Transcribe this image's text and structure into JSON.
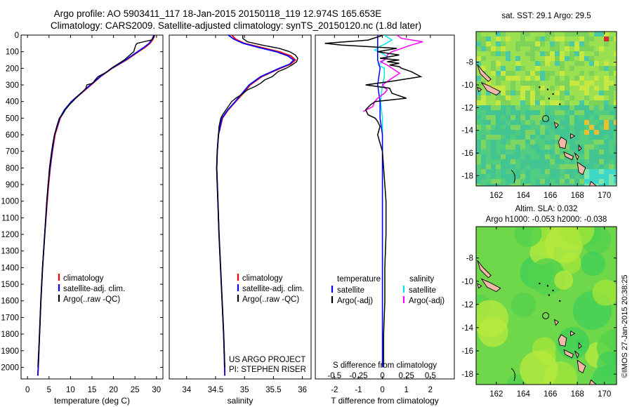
{
  "figure": {
    "title_line1": "Argo profile: AO 5903411_117 18-Jan-2015 20150118_119 12.974S 165.653E",
    "title_line2": "Climatology: CARS2009. Satellite-adjusted climatology: synTS_20150120.nc (1.8d later)",
    "credit": "US ARGO PROJECT",
    "pi": "PI: STEPHEN RISER",
    "watermark": "©IMOS 27-Jan-2015 20:38:25"
  },
  "chart_data": [
    {
      "id": "temperature",
      "type": "line",
      "xlabel": "temperature (deg C)",
      "xlim": [
        -1.5,
        31.5
      ],
      "xticks": [
        0,
        5,
        10,
        15,
        20,
        25,
        30
      ],
      "ylim": [
        2070,
        0
      ],
      "yticks": [
        0,
        100,
        200,
        300,
        400,
        500,
        600,
        700,
        800,
        900,
        1000,
        1100,
        1200,
        1300,
        1400,
        1500,
        1600,
        1700,
        1800,
        1900,
        2000
      ],
      "legend": [
        {
          "label": "climatology",
          "color": "#ff0000"
        },
        {
          "label": "satellite-adj. clim.",
          "color": "#0000ff"
        },
        {
          "label": "Argo(..raw -QC)",
          "color": "#000000"
        }
      ],
      "series": [
        {
          "name": "climatology",
          "color": "#ff0000",
          "depth": [
            0,
            25,
            50,
            75,
            100,
            150,
            200,
            250,
            300,
            350,
            400,
            450,
            500,
            600,
            700,
            800,
            900,
            1000,
            1200,
            1400,
            1600,
            1800,
            2000,
            2050
          ],
          "values": [
            29.6,
            29.2,
            28.5,
            27.3,
            25.8,
            23.0,
            19.7,
            17.0,
            14.8,
            12.5,
            10.3,
            8.7,
            7.6,
            6.4,
            5.8,
            5.3,
            4.9,
            4.6,
            4.0,
            3.5,
            3.1,
            2.8,
            2.5,
            2.4
          ]
        },
        {
          "name": "satellite-adj. clim.",
          "color": "#0000ff",
          "depth": [
            0,
            25,
            50,
            75,
            100,
            150,
            200,
            250,
            300,
            350,
            400,
            450,
            500,
            600,
            700,
            800,
            900,
            1000,
            1200,
            1400,
            1600,
            1800,
            2000,
            2050
          ],
          "values": [
            29.4,
            29.0,
            28.3,
            27.0,
            25.6,
            22.8,
            19.6,
            16.9,
            14.6,
            12.4,
            10.2,
            8.6,
            7.5,
            6.3,
            5.7,
            5.2,
            4.8,
            4.5,
            4.0,
            3.5,
            3.1,
            2.8,
            2.5,
            2.4
          ]
        },
        {
          "name": "Argo(..raw -QC)",
          "color": "#000000",
          "depth": [
            2,
            10,
            20,
            30,
            40,
            50,
            60,
            75,
            100,
            120,
            150,
            175,
            200,
            220,
            250,
            270,
            290,
            300,
            320,
            350,
            380,
            400,
            420,
            450,
            480,
            500,
            550,
            600,
            650,
            700,
            800,
            900,
            1000,
            1200,
            1400,
            1600,
            1800,
            2000
          ],
          "values": [
            29.5,
            29.4,
            29.2,
            28.8,
            27.0,
            25.5,
            25.2,
            25.0,
            24.7,
            23.8,
            22.5,
            21.0,
            19.5,
            18.6,
            16.4,
            15.7,
            15.2,
            13.8,
            13.6,
            12.5,
            11.2,
            10.5,
            9.7,
            8.8,
            8.1,
            7.4,
            6.8,
            6.3,
            5.9,
            5.6,
            5.1,
            4.8,
            4.5,
            4.0,
            3.5,
            3.1,
            2.8,
            2.4
          ]
        }
      ]
    },
    {
      "id": "salinity",
      "type": "line",
      "xlabel": "salinity",
      "xlim": [
        33.7,
        36.15
      ],
      "xticks": [
        34,
        34.5,
        35,
        35.5,
        36
      ],
      "ylim": [
        2070,
        0
      ],
      "legend": [
        {
          "label": "climatology",
          "color": "#ff0000"
        },
        {
          "label": "satellite-adj. clim.",
          "color": "#0000ff"
        },
        {
          "label": "Argo(..raw -QC)",
          "color": "#000000"
        }
      ],
      "series": [
        {
          "name": "climatology",
          "color": "#ff0000",
          "depth": [
            0,
            25,
            50,
            75,
            100,
            125,
            150,
            175,
            200,
            250,
            300,
            350,
            400,
            450,
            500,
            600,
            700,
            800,
            1000,
            1200,
            1500,
            1800,
            2050
          ],
          "values": [
            34.78,
            34.85,
            35.0,
            35.3,
            35.6,
            35.8,
            35.88,
            35.8,
            35.62,
            35.3,
            35.1,
            34.98,
            34.85,
            34.72,
            34.62,
            34.55,
            34.53,
            34.52,
            34.54,
            34.56,
            34.6,
            34.64,
            34.66
          ]
        },
        {
          "name": "satellite-adj. clim.",
          "color": "#0000ff",
          "depth": [
            0,
            25,
            50,
            75,
            100,
            125,
            150,
            175,
            200,
            250,
            300,
            350,
            400,
            450,
            500,
            600,
            700,
            800,
            1000,
            1200,
            1500,
            1800,
            2050
          ],
          "values": [
            34.72,
            34.82,
            34.98,
            35.25,
            35.55,
            35.75,
            35.85,
            35.78,
            35.6,
            35.28,
            35.08,
            34.96,
            34.84,
            34.71,
            34.61,
            34.55,
            34.53,
            34.52,
            34.54,
            34.56,
            34.6,
            34.64,
            34.66
          ]
        },
        {
          "name": "Argo(..raw -QC)",
          "color": "#000000",
          "depth": [
            2,
            20,
            40,
            60,
            80,
            100,
            120,
            140,
            160,
            180,
            200,
            220,
            250,
            270,
            290,
            310,
            330,
            350,
            380,
            400,
            420,
            450,
            480,
            500,
            550,
            600,
            700,
            800,
            1000,
            1200,
            1500,
            1800,
            2000
          ],
          "values": [
            34.97,
            34.97,
            35.05,
            35.3,
            35.6,
            35.78,
            35.88,
            35.92,
            35.9,
            35.82,
            35.72,
            35.58,
            35.48,
            35.35,
            35.28,
            35.18,
            35.05,
            34.98,
            34.85,
            34.78,
            34.74,
            34.68,
            34.62,
            34.59,
            34.56,
            34.55,
            34.53,
            34.52,
            34.54,
            34.56,
            34.6,
            34.64,
            34.66
          ]
        }
      ]
    },
    {
      "id": "difference",
      "type": "line",
      "xlabel_bottom": "T difference from climatology",
      "xlabel_top": "S difference from climatology",
      "xlim": [
        -2.8,
        3.0
      ],
      "xticks": [
        -2,
        -1,
        0,
        1,
        2
      ],
      "xticks_top": [
        -0.5,
        -0.25,
        0,
        0.25,
        0.5
      ],
      "legend": {
        "temperature_header": "temperature",
        "salinity_header": "salinity",
        "items": [
          {
            "label": "satellite",
            "color": "#0000ff",
            "group": "temperature"
          },
          {
            "label": "Argo(-adj)",
            "color": "#000000",
            "group": "temperature"
          },
          {
            "label": "satellite",
            "color": "#00e5ee",
            "group": "salinity"
          },
          {
            "label": "Argo(-adj)",
            "color": "#ff00ff",
            "group": "salinity"
          }
        ]
      },
      "series": [
        {
          "name": "T satellite",
          "color": "#0000ff",
          "depth": [
            0,
            50,
            100,
            150,
            200,
            300,
            400,
            500,
            600,
            700,
            800,
            1000,
            1500,
            2000
          ],
          "values": [
            -0.2,
            -0.2,
            -0.2,
            -0.2,
            -0.1,
            -0.2,
            -0.1,
            -0.1,
            0,
            0,
            0,
            0,
            0,
            0
          ]
        },
        {
          "name": "T Argo(-adj)",
          "color": "#000000",
          "depth": [
            2,
            30,
            50,
            60,
            70,
            80,
            100,
            120,
            140,
            150,
            160,
            170,
            180,
            190,
            200,
            220,
            250,
            280,
            300,
            320,
            350,
            380,
            400,
            420,
            450,
            480,
            500,
            520,
            550,
            600,
            650,
            700,
            800,
            900,
            1000,
            1200,
            1400,
            1600,
            1800,
            2000
          ],
          "values": [
            0,
            -0.6,
            -2.4,
            -1.7,
            -0.5,
            0.6,
            -0.2,
            0.7,
            -0.1,
            0.7,
            0.2,
            0.7,
            0.3,
            0.7,
            0.8,
            1.2,
            1.6,
            0.3,
            -0.7,
            0.3,
            0.4,
            1.0,
            -0.3,
            -0.5,
            -0.7,
            -0.6,
            -0.3,
            -0.2,
            -0.1,
            -0.2,
            -0.1,
            0,
            0.05,
            0.1,
            0.15,
            0.15,
            0.1,
            0.1,
            0.05,
            0.05
          ]
        },
        {
          "name": "S satellite",
          "color": "#00e5ee",
          "depth": [
            0,
            30,
            50,
            70,
            90,
            110,
            130,
            150,
            180,
            200,
            250,
            300,
            400,
            500,
            600,
            700,
            800,
            1000,
            1500,
            2000
          ],
          "values": [
            0.02,
            0.1,
            0.04,
            -0.03,
            -0.08,
            0.0,
            0.05,
            0.02,
            -0.04,
            0.02,
            0.02,
            0.0,
            -0.02,
            0.0,
            0.0,
            0.0,
            0.0,
            0.0,
            0.0,
            0.0
          ]
        },
        {
          "name": "S Argo(-adj)",
          "color": "#ff00ff",
          "depth": [
            0,
            20,
            40,
            60,
            80,
            100,
            120,
            140,
            160,
            180,
            200,
            230,
            260,
            280,
            300,
            330,
            350,
            380,
            400,
            430,
            460
          ],
          "values": [
            0.15,
            0.2,
            0.42,
            0.3,
            0.2,
            0.1,
            0.05,
            0.05,
            -0.02,
            0.05,
            0.1,
            0.18,
            0.1,
            0.05,
            0.0,
            0.05,
            0.02,
            -0.05,
            -0.08,
            -0.1,
            -0.2
          ]
        }
      ]
    },
    {
      "id": "sst-map",
      "type": "heatmap",
      "title": "sat. SST: 29.1  Argo: 29.5",
      "xticks": [
        162,
        164,
        166,
        168,
        170
      ],
      "yticks": [
        -8,
        -10,
        -12,
        -14,
        -16,
        -18
      ],
      "xlim": [
        160.5,
        170.9
      ],
      "ylim": [
        -18.9,
        -5.3
      ]
    },
    {
      "id": "sla-map",
      "type": "heatmap",
      "title_line1": "Altim. SLA: 0.032",
      "title_line2": "Argo h1000: -0.053 h2000: -0.038",
      "xticks": [
        162,
        164,
        166,
        168,
        170
      ],
      "yticks": [
        -8,
        -10,
        -12,
        -14,
        -16,
        -18
      ],
      "xlim": [
        160.5,
        170.9
      ],
      "ylim": [
        -18.9,
        -5.3
      ]
    }
  ]
}
